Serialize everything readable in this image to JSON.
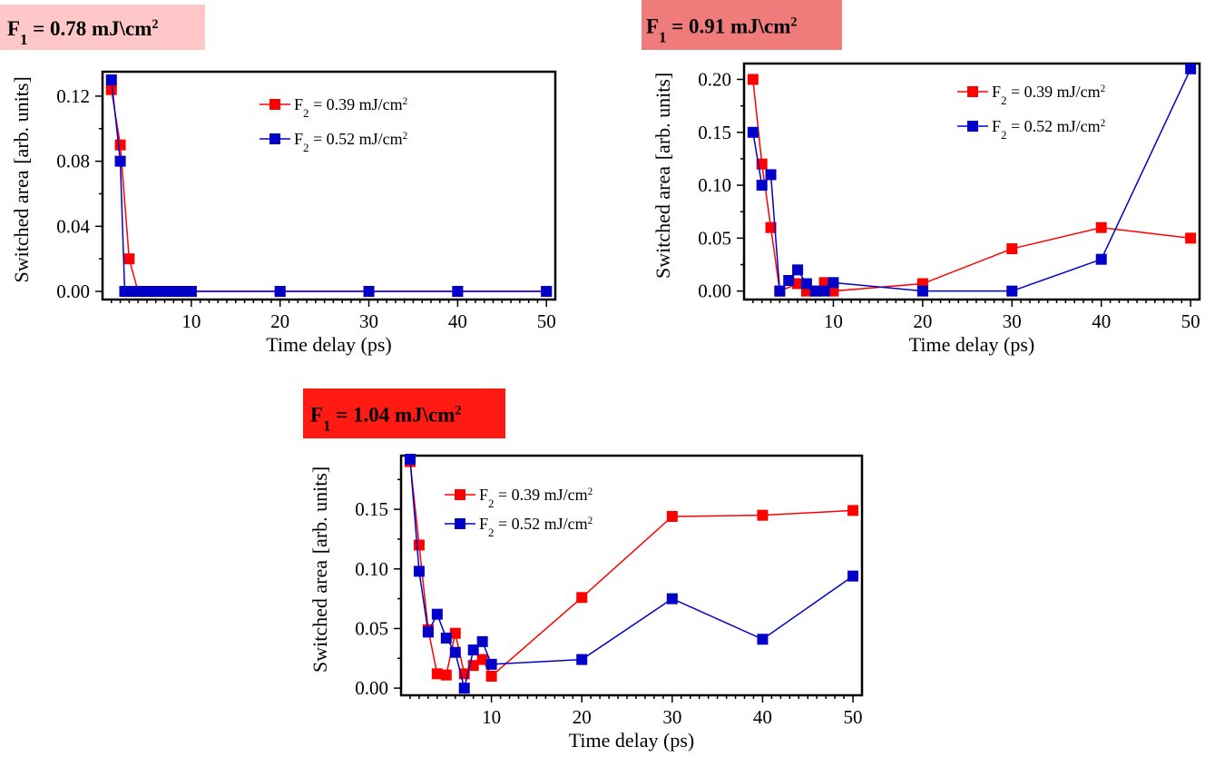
{
  "colors": {
    "red": "#ff0000",
    "blue": "#0000c8",
    "title_bg_light": "#ffc7c7",
    "title_bg_medium": "#f07b7b",
    "title_bg_strong": "#ff1a14"
  },
  "chart_data": [
    {
      "type": "line",
      "title": "F1 = 0.78 mJ\\cm2",
      "title_background": "light red",
      "xlabel": "Time delay (ps)",
      "ylabel_left": "Switched area",
      "ylabel_right": "[arb. units]",
      "xlim": [
        0,
        51
      ],
      "ylim": [
        -0.005,
        0.135
      ],
      "xticks": [
        10,
        20,
        30,
        40,
        50
      ],
      "yticks": [
        0.0,
        0.04,
        0.08,
        0.12
      ],
      "ytick_labels": [
        "0.00",
        "0.04",
        "0.08",
        "0.12"
      ],
      "legend_position": "top-center",
      "series": [
        {
          "name": "F2 = 0.39 mJ/cm2",
          "color": "red",
          "x": [
            1,
            2,
            3,
            4,
            5,
            6,
            7,
            8,
            9,
            10,
            20,
            30,
            40,
            50
          ],
          "y": [
            0.124,
            0.09,
            0.02,
            0,
            0,
            0,
            0,
            0,
            0,
            0,
            0,
            0,
            0,
            0
          ]
        },
        {
          "name": "F2 = 0.52 mJ/cm2",
          "color": "blue",
          "x": [
            1,
            2,
            2.5,
            3,
            4,
            5,
            6,
            7,
            8,
            9,
            10,
            20,
            30,
            40,
            50
          ],
          "y": [
            0.13,
            0.08,
            0,
            0,
            0,
            0,
            0,
            0,
            0,
            0,
            0,
            0,
            0,
            0,
            0
          ]
        }
      ]
    },
    {
      "type": "line",
      "title": "F1 = 0.91 mJ\\cm2",
      "title_background": "medium red",
      "xlabel": "Time delay (ps)",
      "ylabel_left": "Switched area",
      "ylabel_right": "[arb. units]",
      "xlim": [
        0,
        51
      ],
      "ylim": [
        -0.008,
        0.215
      ],
      "xticks": [
        10,
        20,
        30,
        40,
        50
      ],
      "yticks": [
        0.0,
        0.05,
        0.1,
        0.15,
        0.2
      ],
      "ytick_labels": [
        "0.00",
        "0.05",
        "0.10",
        "0.15",
        "0.20"
      ],
      "legend_position": "top-right",
      "series": [
        {
          "name": "F2 = 0.39 mJ/cm2",
          "color": "red",
          "x": [
            1,
            2,
            3,
            4,
            6,
            7,
            8,
            9,
            10,
            20,
            30,
            40,
            50
          ],
          "y": [
            0.2,
            0.12,
            0.06,
            0,
            0.007,
            0,
            0,
            0.008,
            0,
            0.007,
            0.04,
            0.06,
            0.05
          ]
        },
        {
          "name": "F2 = 0.52 mJ/cm2",
          "color": "blue",
          "x": [
            1,
            2,
            3,
            4,
            5,
            6,
            7,
            8,
            9,
            10,
            20,
            30,
            40,
            50
          ],
          "y": [
            0.15,
            0.1,
            0.11,
            0,
            0.01,
            0.02,
            0.007,
            0,
            0,
            0.008,
            0,
            0,
            0.03,
            0.21
          ]
        }
      ]
    },
    {
      "type": "line",
      "title": "F1 = 1.04 mJ\\cm2",
      "title_background": "strong red",
      "xlabel": "Time delay (ps)",
      "ylabel_left": "Switched area",
      "ylabel_right": "[arb. units]",
      "xlim": [
        0,
        51
      ],
      "ylim": [
        -0.006,
        0.195
      ],
      "xticks": [
        10,
        20,
        30,
        40,
        50
      ],
      "yticks": [
        0.0,
        0.05,
        0.1,
        0.15
      ],
      "ytick_labels": [
        "0.00",
        "0.05",
        "0.10",
        "0.15"
      ],
      "legend_position": "top-left",
      "series": [
        {
          "name": "F2 = 0.39 mJ/cm2",
          "color": "red",
          "x": [
            1,
            2,
            3,
            4,
            5,
            6,
            7,
            8,
            9,
            10,
            20,
            30,
            40,
            50
          ],
          "y": [
            0.19,
            0.12,
            0.049,
            0.012,
            0.011,
            0.046,
            0.012,
            0.019,
            0.024,
            0.01,
            0.076,
            0.144,
            0.145,
            0.149
          ]
        },
        {
          "name": "F2 = 0.52 mJ/cm2",
          "color": "blue",
          "x": [
            1,
            2,
            3,
            4,
            5,
            6,
            7,
            8,
            9,
            10,
            20,
            30,
            40,
            50
          ],
          "y": [
            0.192,
            0.098,
            0.047,
            0.062,
            0.042,
            0.03,
            0,
            0.032,
            0.039,
            0.02,
            0.024,
            0.075,
            0.041,
            0.094
          ]
        }
      ]
    }
  ]
}
